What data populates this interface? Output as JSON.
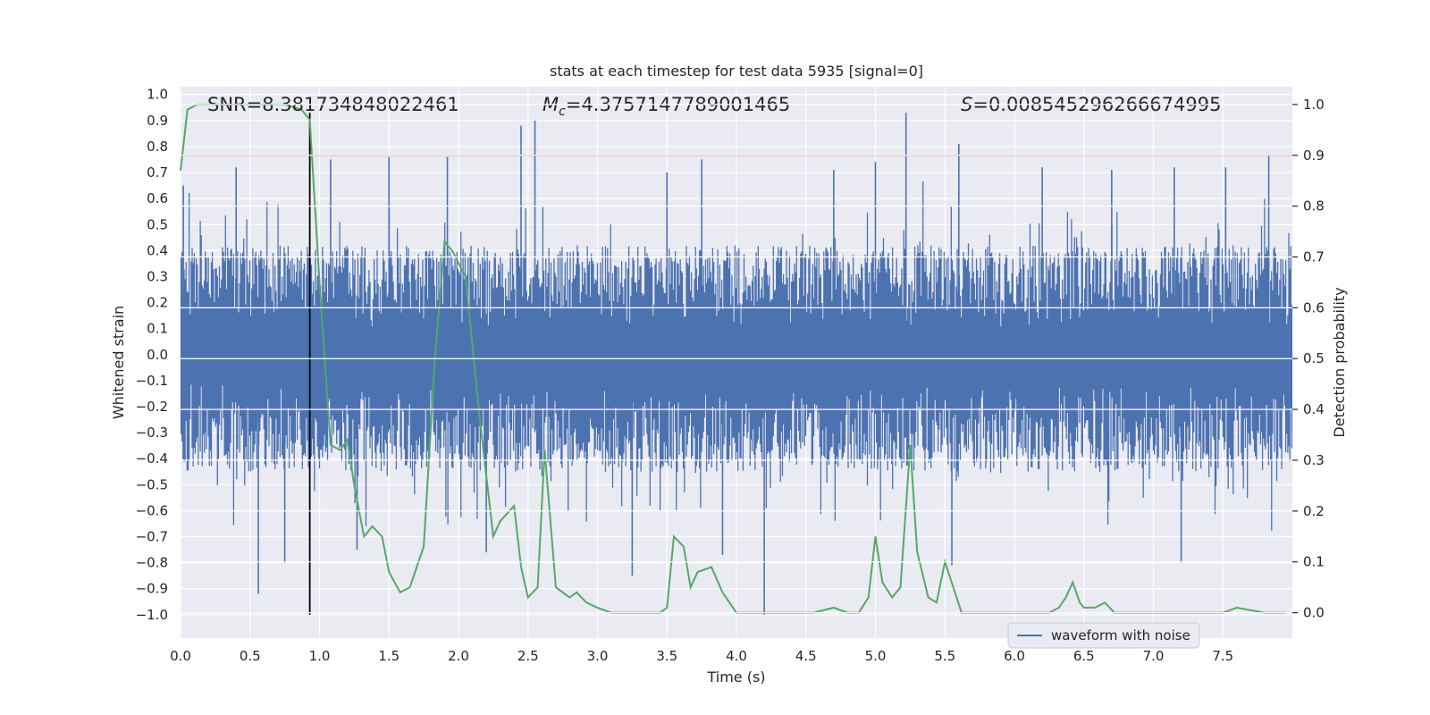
{
  "chart_data": {
    "type": "line",
    "title": "stats at each timestep for test data 5935 [signal=0]",
    "xlabel": "Time (s)",
    "ylabel": "Whitened strain",
    "ylabel_right": "Detection probability",
    "xlim": [
      0.0,
      8.0
    ],
    "ylim_left": [
      -1.09,
      1.03
    ],
    "ylim_right": [
      -0.05,
      1.035
    ],
    "x_ticks": [
      "0.0",
      "0.5",
      "1.0",
      "1.5",
      "2.0",
      "2.5",
      "3.0",
      "3.5",
      "4.0",
      "4.5",
      "5.0",
      "5.5",
      "6.0",
      "6.5",
      "7.0",
      "7.5"
    ],
    "x_tick_values": [
      0.0,
      0.5,
      1.0,
      1.5,
      2.0,
      2.5,
      3.0,
      3.5,
      4.0,
      4.5,
      5.0,
      5.5,
      6.0,
      6.5,
      7.0,
      7.5
    ],
    "y_ticks_left": [
      "1.0",
      "0.9",
      "0.8",
      "0.7",
      "0.6",
      "0.5",
      "0.4",
      "0.3",
      "0.2",
      "0.1",
      "0.0",
      "−0.1",
      "−0.2",
      "−0.3",
      "−0.4",
      "−0.5",
      "−0.6",
      "−0.7",
      "−0.8",
      "−0.9",
      "−1.0"
    ],
    "y_tick_values_left": [
      1.0,
      0.9,
      0.8,
      0.7,
      0.6,
      0.5,
      0.4,
      0.3,
      0.2,
      0.1,
      0.0,
      -0.1,
      -0.2,
      -0.3,
      -0.4,
      -0.5,
      -0.6,
      -0.7,
      -0.8,
      -0.9,
      -1.0
    ],
    "y_ticks_right": [
      "1.0",
      "0.9",
      "0.8",
      "0.7",
      "0.6",
      "0.5",
      "0.4",
      "0.3",
      "0.2",
      "0.1",
      "0.0"
    ],
    "y_tick_values_right": [
      1.0,
      0.9,
      0.8,
      0.7,
      0.6,
      0.5,
      0.4,
      0.3,
      0.2,
      0.1,
      0.0
    ],
    "annotations": {
      "snr": "SNR=8.381734848022461",
      "mc_symbol": "M",
      "mc_subscript": "c",
      "mc_value": "=4.3757147789001465",
      "s_symbol": "S",
      "s_value": "=0.008545296266674995"
    },
    "threshold": {
      "value": 0.9,
      "axis": "right",
      "color": "#c44e52"
    },
    "vertical_marker": {
      "x": 0.93,
      "y_range": [
        -1.0,
        0.93
      ],
      "color": "#000000"
    },
    "legend": {
      "label": "waveform with noise",
      "position": "lower-right"
    },
    "colors": {
      "waveform": "#4c72b0",
      "probability": "#55a868",
      "axes_bg": "#eaeaf2",
      "grid": "#ffffff"
    },
    "waveform": {
      "name": "waveform with noise",
      "axis": "left",
      "typical_range": [
        -0.45,
        0.42
      ],
      "peaks": [
        {
          "x": 0.02,
          "y": 0.65
        },
        {
          "x": 0.4,
          "y": 0.72
        },
        {
          "x": 0.56,
          "y": -0.92
        },
        {
          "x": 0.75,
          "y": -0.8
        },
        {
          "x": 1.08,
          "y": 0.75
        },
        {
          "x": 1.27,
          "y": -0.75
        },
        {
          "x": 1.5,
          "y": 0.76
        },
        {
          "x": 1.92,
          "y": 0.76
        },
        {
          "x": 2.45,
          "y": 0.88
        },
        {
          "x": 2.55,
          "y": 0.9
        },
        {
          "x": 3.5,
          "y": 0.7
        },
        {
          "x": 3.75,
          "y": 0.75
        },
        {
          "x": 4.2,
          "y": -1.0
        },
        {
          "x": 4.7,
          "y": 0.71
        },
        {
          "x": 5.0,
          "y": 0.74
        },
        {
          "x": 5.22,
          "y": 0.93
        },
        {
          "x": 5.6,
          "y": 0.81
        },
        {
          "x": 6.2,
          "y": 0.72
        },
        {
          "x": 6.7,
          "y": 0.71
        },
        {
          "x": 7.15,
          "y": 0.72
        },
        {
          "x": 7.52,
          "y": 0.72
        },
        {
          "x": 7.83,
          "y": 0.77
        },
        {
          "x": 2.2,
          "y": -0.76
        },
        {
          "x": 3.25,
          "y": -0.85
        },
        {
          "x": 3.9,
          "y": -0.77
        },
        {
          "x": 5.55,
          "y": -0.81
        },
        {
          "x": 7.2,
          "y": -0.8
        }
      ]
    },
    "probability": {
      "name": "Detection probability",
      "axis": "right",
      "x": [
        0.0,
        0.05,
        0.12,
        0.25,
        0.5,
        0.75,
        0.87,
        0.93,
        1.0,
        1.08,
        1.15,
        1.2,
        1.25,
        1.32,
        1.38,
        1.45,
        1.5,
        1.58,
        1.65,
        1.75,
        1.83,
        1.9,
        1.96,
        2.05,
        2.15,
        2.25,
        2.3,
        2.4,
        2.45,
        2.5,
        2.57,
        2.62,
        2.7,
        2.8,
        2.85,
        2.92,
        3.0,
        3.1,
        3.2,
        3.35,
        3.45,
        3.5,
        3.55,
        3.62,
        3.67,
        3.72,
        3.82,
        3.9,
        4.0,
        4.2,
        4.4,
        4.55,
        4.7,
        4.8,
        4.88,
        4.95,
        5.0,
        5.05,
        5.12,
        5.18,
        5.25,
        5.3,
        5.38,
        5.44,
        5.5,
        5.56,
        5.62,
        5.7,
        5.9,
        6.15,
        6.25,
        6.32,
        6.37,
        6.42,
        6.47,
        6.5,
        6.58,
        6.65,
        6.72,
        6.8,
        7.0,
        7.2,
        7.4,
        7.5,
        7.6,
        7.8,
        7.95
      ],
      "y": [
        0.87,
        0.99,
        1.0,
        1.0,
        1.0,
        1.0,
        0.99,
        0.97,
        0.65,
        0.33,
        0.32,
        0.34,
        0.25,
        0.15,
        0.17,
        0.15,
        0.08,
        0.04,
        0.05,
        0.13,
        0.5,
        0.73,
        0.71,
        0.66,
        0.39,
        0.15,
        0.18,
        0.21,
        0.09,
        0.03,
        0.05,
        0.32,
        0.05,
        0.03,
        0.04,
        0.02,
        0.01,
        0.0,
        0.0,
        0.0,
        0.0,
        0.01,
        0.15,
        0.13,
        0.05,
        0.08,
        0.09,
        0.04,
        0.0,
        0.0,
        0.0,
        0.0,
        0.01,
        0.0,
        0.0,
        0.03,
        0.15,
        0.06,
        0.03,
        0.05,
        0.33,
        0.12,
        0.03,
        0.02,
        0.1,
        0.05,
        0.0,
        0.0,
        0.0,
        0.0,
        0.0,
        0.01,
        0.03,
        0.06,
        0.02,
        0.01,
        0.01,
        0.02,
        0.0,
        0.0,
        0.0,
        0.0,
        0.0,
        0.0,
        0.01,
        0.0,
        0.0
      ]
    }
  }
}
